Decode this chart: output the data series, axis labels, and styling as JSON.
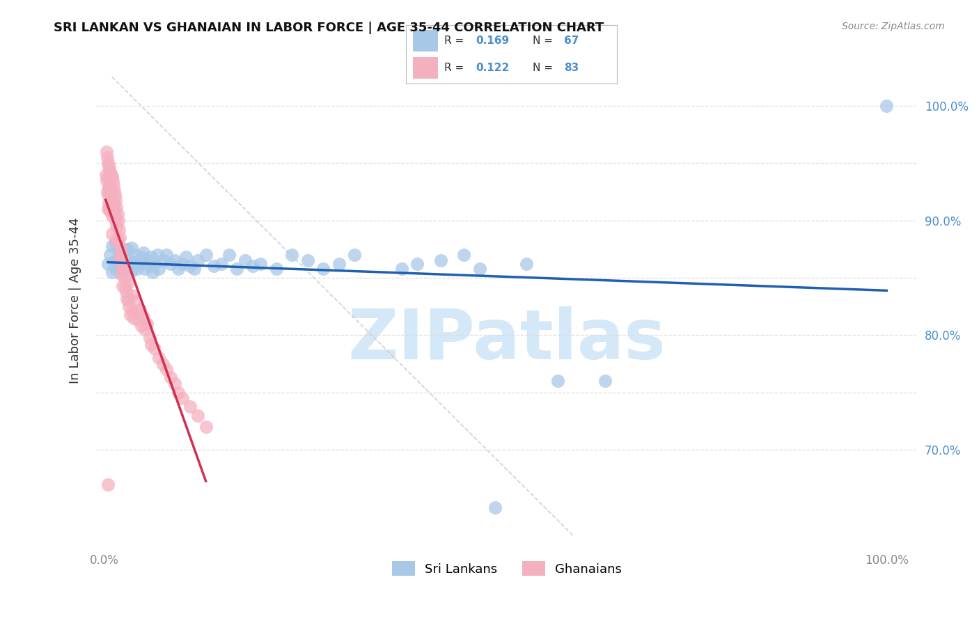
{
  "title": "SRI LANKAN VS GHANAIAN IN LABOR FORCE | AGE 35-44 CORRELATION CHART",
  "source": "Source: ZipAtlas.com",
  "ylabel": "In Labor Force | Age 35-44",
  "xlim": [
    -0.01,
    1.04
  ],
  "ylim": [
    0.615,
    1.045
  ],
  "sri_color": "#a8c8e8",
  "gha_color": "#f5b0c0",
  "sri_line_color": "#2060b0",
  "gha_line_color": "#d03050",
  "diag_color": "#cccccc",
  "grid_color": "#dddddd",
  "ytick_color": "#4a8fcc",
  "xtick_color": "#888888",
  "legend_r_color": "#4a8fcc",
  "legend_n_color": "#4a8fcc",
  "watermark_color": "#d4e8f8",
  "sri_x": [
    0.005,
    0.008,
    0.01,
    0.01,
    0.012,
    0.015,
    0.015,
    0.018,
    0.02,
    0.02,
    0.022,
    0.025,
    0.025,
    0.028,
    0.03,
    0.03,
    0.032,
    0.035,
    0.035,
    0.038,
    0.04,
    0.042,
    0.045,
    0.048,
    0.05,
    0.052,
    0.055,
    0.058,
    0.06,
    0.062,
    0.065,
    0.068,
    0.07,
    0.075,
    0.08,
    0.085,
    0.09,
    0.095,
    0.1,
    0.105,
    0.11,
    0.115,
    0.12,
    0.13,
    0.14,
    0.15,
    0.16,
    0.17,
    0.18,
    0.19,
    0.2,
    0.22,
    0.24,
    0.26,
    0.28,
    0.3,
    0.32,
    0.38,
    0.4,
    0.43,
    0.46,
    0.48,
    0.5,
    0.54,
    0.58,
    0.64,
    1.0
  ],
  "sri_y": [
    0.862,
    0.87,
    0.878,
    0.855,
    0.864,
    0.88,
    0.858,
    0.868,
    0.872,
    0.855,
    0.86,
    0.875,
    0.858,
    0.862,
    0.875,
    0.858,
    0.865,
    0.876,
    0.856,
    0.864,
    0.87,
    0.858,
    0.863,
    0.868,
    0.872,
    0.858,
    0.865,
    0.86,
    0.868,
    0.855,
    0.862,
    0.87,
    0.858,
    0.865,
    0.87,
    0.862,
    0.865,
    0.858,
    0.862,
    0.868,
    0.86,
    0.858,
    0.865,
    0.87,
    0.86,
    0.862,
    0.87,
    0.858,
    0.865,
    0.86,
    0.862,
    0.858,
    0.87,
    0.865,
    0.858,
    0.862,
    0.87,
    0.858,
    0.862,
    0.865,
    0.87,
    0.858,
    0.65,
    0.862,
    0.76,
    0.76,
    1.0
  ],
  "gha_x": [
    0.002,
    0.003,
    0.003,
    0.004,
    0.004,
    0.005,
    0.005,
    0.005,
    0.005,
    0.006,
    0.006,
    0.006,
    0.007,
    0.007,
    0.007,
    0.008,
    0.008,
    0.008,
    0.009,
    0.009,
    0.01,
    0.01,
    0.01,
    0.01,
    0.011,
    0.011,
    0.012,
    0.012,
    0.013,
    0.013,
    0.014,
    0.014,
    0.015,
    0.015,
    0.015,
    0.016,
    0.016,
    0.017,
    0.018,
    0.018,
    0.019,
    0.02,
    0.02,
    0.021,
    0.022,
    0.022,
    0.023,
    0.024,
    0.024,
    0.025,
    0.026,
    0.027,
    0.028,
    0.029,
    0.03,
    0.031,
    0.032,
    0.033,
    0.035,
    0.036,
    0.038,
    0.04,
    0.042,
    0.044,
    0.046,
    0.048,
    0.05,
    0.052,
    0.055,
    0.058,
    0.06,
    0.065,
    0.07,
    0.075,
    0.08,
    0.085,
    0.09,
    0.095,
    0.1,
    0.11,
    0.12,
    0.13,
    0.005
  ],
  "gha_y": [
    0.94,
    0.96,
    0.935,
    0.955,
    0.925,
    0.95,
    0.938,
    0.922,
    0.91,
    0.948,
    0.93,
    0.915,
    0.945,
    0.928,
    0.912,
    0.942,
    0.925,
    0.908,
    0.94,
    0.922,
    0.938,
    0.92,
    0.904,
    0.888,
    0.934,
    0.917,
    0.93,
    0.913,
    0.926,
    0.908,
    0.922,
    0.905,
    0.918,
    0.9,
    0.883,
    0.912,
    0.895,
    0.906,
    0.9,
    0.882,
    0.892,
    0.885,
    0.867,
    0.876,
    0.87,
    0.853,
    0.866,
    0.86,
    0.843,
    0.856,
    0.85,
    0.843,
    0.838,
    0.832,
    0.845,
    0.83,
    0.825,
    0.818,
    0.835,
    0.82,
    0.815,
    0.83,
    0.82,
    0.813,
    0.822,
    0.808,
    0.816,
    0.805,
    0.81,
    0.798,
    0.792,
    0.788,
    0.78,
    0.775,
    0.77,
    0.763,
    0.758,
    0.75,
    0.745,
    0.738,
    0.73,
    0.72,
    0.67
  ]
}
